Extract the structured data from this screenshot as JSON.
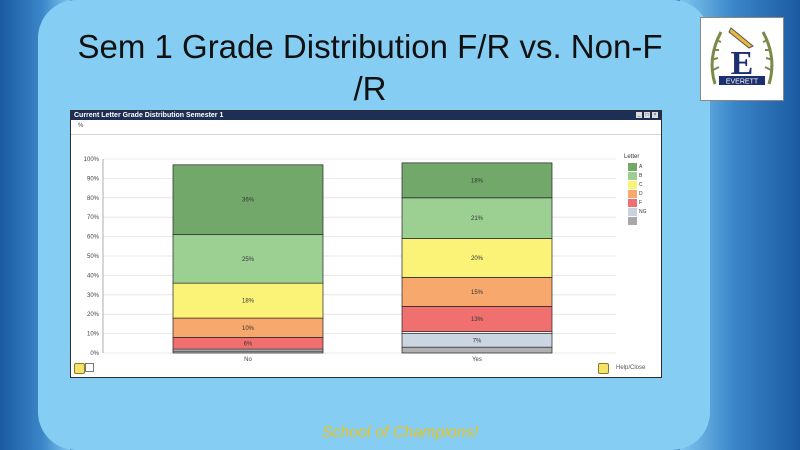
{
  "slide": {
    "title_line1": "Sem 1 Grade Distribution  F/R vs. Non-F",
    "title_line2": "/R",
    "footer": "School of Champions!",
    "logo_text": "EVERETT"
  },
  "window": {
    "title": "Current Letter Grade Distribution Semester 1",
    "filter_label": "%"
  },
  "legend": {
    "title": "Letter",
    "items": [
      {
        "label": "A",
        "color": "#72a86a"
      },
      {
        "label": "B",
        "color": "#9ccf92"
      },
      {
        "label": "C",
        "color": "#fbf378"
      },
      {
        "label": "D",
        "color": "#f7a86c"
      },
      {
        "label": "F",
        "color": "#f07070"
      },
      {
        "label": "NG",
        "color": "#c8d3df"
      },
      {
        "label": "",
        "color": "#a8a8a8"
      }
    ]
  },
  "chart_data": {
    "type": "bar",
    "stacked": true,
    "categories": [
      "No",
      "Yes"
    ],
    "series": [
      {
        "name": "",
        "color": "#b0b0b0",
        "values": [
          1,
          3
        ]
      },
      {
        "name": "",
        "color": "#cbd6e2",
        "values": [
          1,
          7
        ]
      },
      {
        "name": "",
        "color": "#ffffff",
        "values": [
          0,
          1
        ]
      },
      {
        "name": "",
        "color": "#f07070",
        "values": [
          6,
          13
        ]
      },
      {
        "name": "",
        "color": "#f7a86c",
        "values": [
          10,
          15
        ]
      },
      {
        "name": "",
        "color": "#fbf378",
        "values": [
          18,
          20
        ]
      },
      {
        "name": "",
        "color": "#9ccf92",
        "values": [
          25,
          21
        ]
      },
      {
        "name": "",
        "color": "#72a86a",
        "values": [
          36,
          18
        ]
      }
    ],
    "data_labels": [
      [
        "",
        "",
        "",
        "6%",
        "10%",
        "18%",
        "25%",
        "36%"
      ],
      [
        "",
        "7%",
        "",
        "13%",
        "15%",
        "20%",
        "21%",
        "18%"
      ]
    ],
    "yticks": [
      "0%",
      "10%",
      "20%",
      "30%",
      "40%",
      "50%",
      "60%",
      "70%",
      "80%",
      "90%",
      "100%"
    ],
    "ylim": [
      0,
      100
    ],
    "grid": true,
    "legend_position": "right"
  },
  "toolbar": {
    "help_label": "Help/Close"
  }
}
